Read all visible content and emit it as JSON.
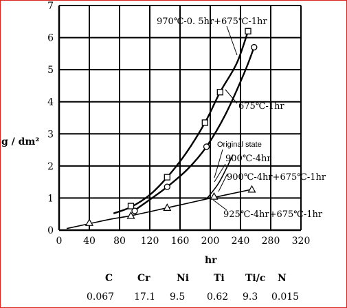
{
  "chart_data": {
    "type": "line",
    "xlabel": "hr",
    "ylabel": "g / dm²",
    "xlim": [
      0,
      320
    ],
    "ylim": [
      0,
      7
    ],
    "x_ticks": [
      0,
      40,
      80,
      120,
      160,
      200,
      240,
      280,
      320
    ],
    "y_ticks": [
      0,
      1,
      2,
      3,
      4,
      5,
      6,
      7
    ],
    "grid": true,
    "series": [
      {
        "name": "970℃-0.5hr+675℃-1hr",
        "marker": "square",
        "curve": [
          [
            72,
            0.52
          ],
          [
            95,
            0.72
          ],
          [
            120,
            1.1
          ],
          [
            143,
            1.65
          ],
          [
            168,
            2.4
          ],
          [
            193,
            3.35
          ],
          [
            213,
            4.3
          ],
          [
            235,
            5.2
          ],
          [
            250,
            6.2
          ]
        ],
        "points": [
          [
            95,
            0.75
          ],
          [
            143,
            1.65
          ],
          [
            193,
            3.35
          ],
          [
            213,
            4.3
          ],
          [
            250,
            6.2
          ]
        ]
      },
      {
        "name": "675℃-1hr",
        "marker": "circle",
        "curve": [
          [
            100,
            0.62
          ],
          [
            120,
            0.95
          ],
          [
            143,
            1.35
          ],
          [
            170,
            1.9
          ],
          [
            195,
            2.6
          ],
          [
            220,
            3.6
          ],
          [
            245,
            4.9
          ],
          [
            258,
            5.7
          ]
        ],
        "points": [
          [
            100,
            0.6
          ],
          [
            143,
            1.35
          ],
          [
            195,
            2.6
          ],
          [
            258,
            5.7
          ]
        ]
      },
      {
        "name": "900℃-4hr",
        "marker": "none",
        "curve": [
          [
            10,
            0.05
          ],
          [
            40,
            0.2
          ],
          [
            70,
            0.35
          ],
          [
            95,
            0.45
          ],
          [
            140,
            0.68
          ],
          [
            195,
            0.97
          ]
        ],
        "points": []
      },
      {
        "name": "900℃-4hr+675℃-1hr",
        "marker": "triangle",
        "curve": [
          [
            195,
            0.97
          ],
          [
            225,
            1.12
          ],
          [
            255,
            1.27
          ]
        ],
        "points": [
          [
            40,
            0.23
          ],
          [
            95,
            0.45
          ],
          [
            143,
            0.7
          ],
          [
            205,
            1.05
          ],
          [
            255,
            1.27
          ]
        ]
      },
      {
        "name": "925℃-4hr+675℃-1hr",
        "marker": "none",
        "curve": [
          [
            195,
            0.97
          ],
          [
            212,
            1.5
          ],
          [
            230,
            2.35
          ]
        ],
        "points": []
      }
    ],
    "annotations": {
      "top_curve": "970℃-0. 5hr+675℃-1hr",
      "second_curve": "675℃-1hr",
      "original": "Original state",
      "a900": "900℃-4hr",
      "a900b": "900℃-4hr+675℃-1hr",
      "a925": "925℃-4hr+675℃-1hr"
    }
  },
  "composition": {
    "headers": [
      "C",
      "Cr",
      "Ni",
      "Ti",
      "Ti/c",
      "N"
    ],
    "values": [
      "0.067",
      "17.1",
      "9.5",
      "0.62",
      "9.3",
      "0.015"
    ]
  },
  "colors": {
    "frame": "#d9231d",
    "ink": "#000000"
  }
}
